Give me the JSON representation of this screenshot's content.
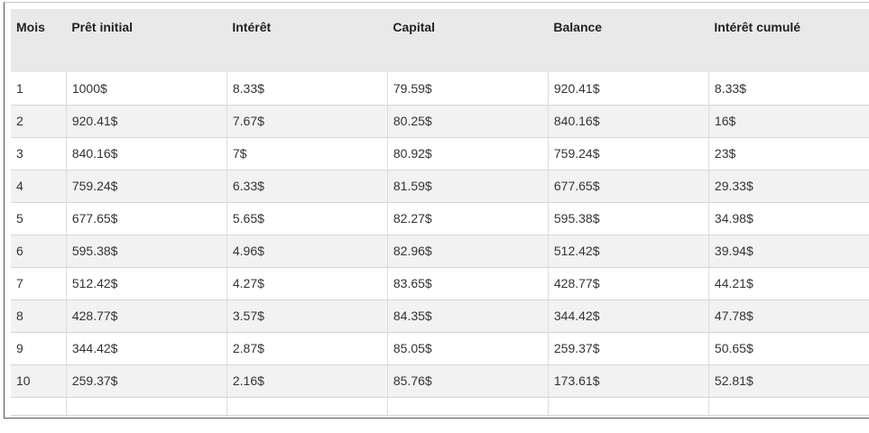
{
  "table": {
    "headers": [
      "Mois",
      "Prêt initial",
      "Intérêt",
      "Capital",
      "Balance",
      "Intérêt cumulé"
    ],
    "rows": [
      [
        "1",
        "1000$",
        "8.33$",
        "79.59$",
        "920.41$",
        "8.33$"
      ],
      [
        "2",
        "920.41$",
        "7.67$",
        "80.25$",
        "840.16$",
        "16$"
      ],
      [
        "3",
        "840.16$",
        "7$",
        "80.92$",
        "759.24$",
        "23$"
      ],
      [
        "4",
        "759.24$",
        "6.33$",
        "81.59$",
        "677.65$",
        "29.33$"
      ],
      [
        "5",
        "677.65$",
        "5.65$",
        "82.27$",
        "595.38$",
        "34.98$"
      ],
      [
        "6",
        "595.38$",
        "4.96$",
        "82.96$",
        "512.42$",
        "39.94$"
      ],
      [
        "7",
        "512.42$",
        "4.27$",
        "83.65$",
        "428.77$",
        "44.21$"
      ],
      [
        "8",
        "428.77$",
        "3.57$",
        "84.35$",
        "344.42$",
        "47.78$"
      ],
      [
        "9",
        "344.42$",
        "2.87$",
        "85.05$",
        "259.37$",
        "50.65$"
      ],
      [
        "10",
        "259.37$",
        "2.16$",
        "85.76$",
        "173.61$",
        "52.81$"
      ]
    ]
  }
}
